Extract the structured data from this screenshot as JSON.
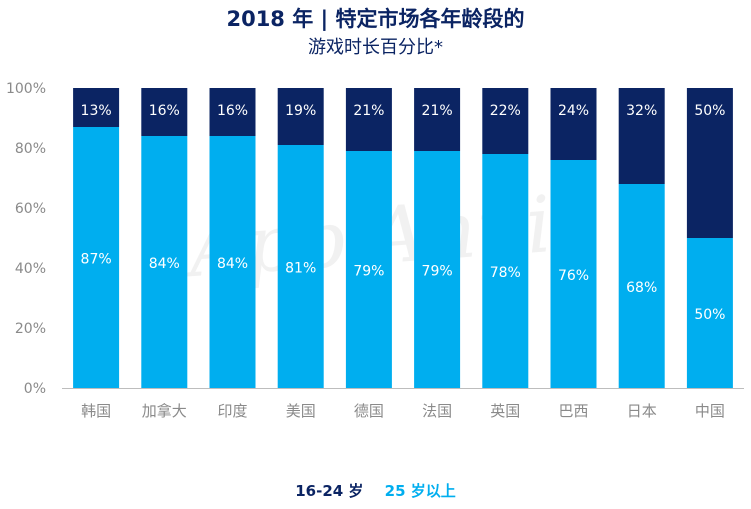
{
  "title": "2018 年 | 特定市场各年龄段的",
  "subtitle": "游戏时长百分比*",
  "watermark": "App Annie",
  "colors": {
    "age_16_24": "#0b2463",
    "age_25_plus": "#00aeef",
    "axis_text": "#8a8a8a",
    "title": "#0b2463"
  },
  "legend": {
    "young_label": "16-24 岁",
    "old_label": "25 岁以上"
  },
  "chart_data": {
    "type": "bar",
    "stacked": true,
    "categories": [
      "韩国",
      "加拿大",
      "印度",
      "美国",
      "德国",
      "法国",
      "英国",
      "巴西",
      "日本",
      "中国"
    ],
    "series": [
      {
        "name": "25 岁以上",
        "values": [
          87,
          84,
          84,
          81,
          79,
          79,
          78,
          76,
          68,
          50
        ]
      },
      {
        "name": "16-24 岁",
        "values": [
          13,
          16,
          16,
          19,
          21,
          21,
          22,
          24,
          32,
          50
        ]
      }
    ],
    "data_labels": [
      [
        "87%",
        "84%",
        "84%",
        "81%",
        "79%",
        "79%",
        "78%",
        "76%",
        "68%",
        "50%"
      ],
      [
        "13%",
        "16%",
        "16%",
        "19%",
        "21%",
        "21%",
        "22%",
        "24%",
        "32%",
        "50%"
      ]
    ],
    "y_ticks": [
      "0%",
      "20%",
      "40%",
      "60%",
      "80%",
      "100%"
    ],
    "y_tick_values": [
      0,
      20,
      40,
      60,
      80,
      100
    ],
    "ylim": [
      0,
      100
    ],
    "grid": false,
    "legend_position": "bottom"
  }
}
